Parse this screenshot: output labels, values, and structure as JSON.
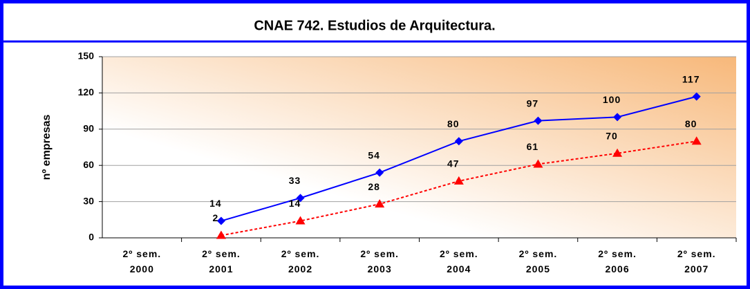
{
  "chart_data": {
    "type": "line",
    "title": "CNAE 742. Estudios de Arquitectura.",
    "y_label": "nº empresas",
    "categories": [
      "2º sem. 2000",
      "2º sem. 2001",
      "2º sem. 2002",
      "2º sem. 2003",
      "2º sem. 2004",
      "2º sem. 2005",
      "2º sem. 2006",
      "2º sem. 2007"
    ],
    "series": [
      {
        "color": "#0000ff",
        "marker": "diamond",
        "dashed": false,
        "values": [
          null,
          14,
          33,
          54,
          80,
          97,
          100,
          117
        ]
      },
      {
        "color": "#ff0000",
        "marker": "triangle",
        "dashed": true,
        "values": [
          null,
          2,
          14,
          28,
          47,
          61,
          70,
          80
        ]
      }
    ],
    "ylim": [
      0,
      150
    ],
    "yticks": [
      0,
      30,
      60,
      90,
      120,
      150
    ],
    "grid": true
  }
}
